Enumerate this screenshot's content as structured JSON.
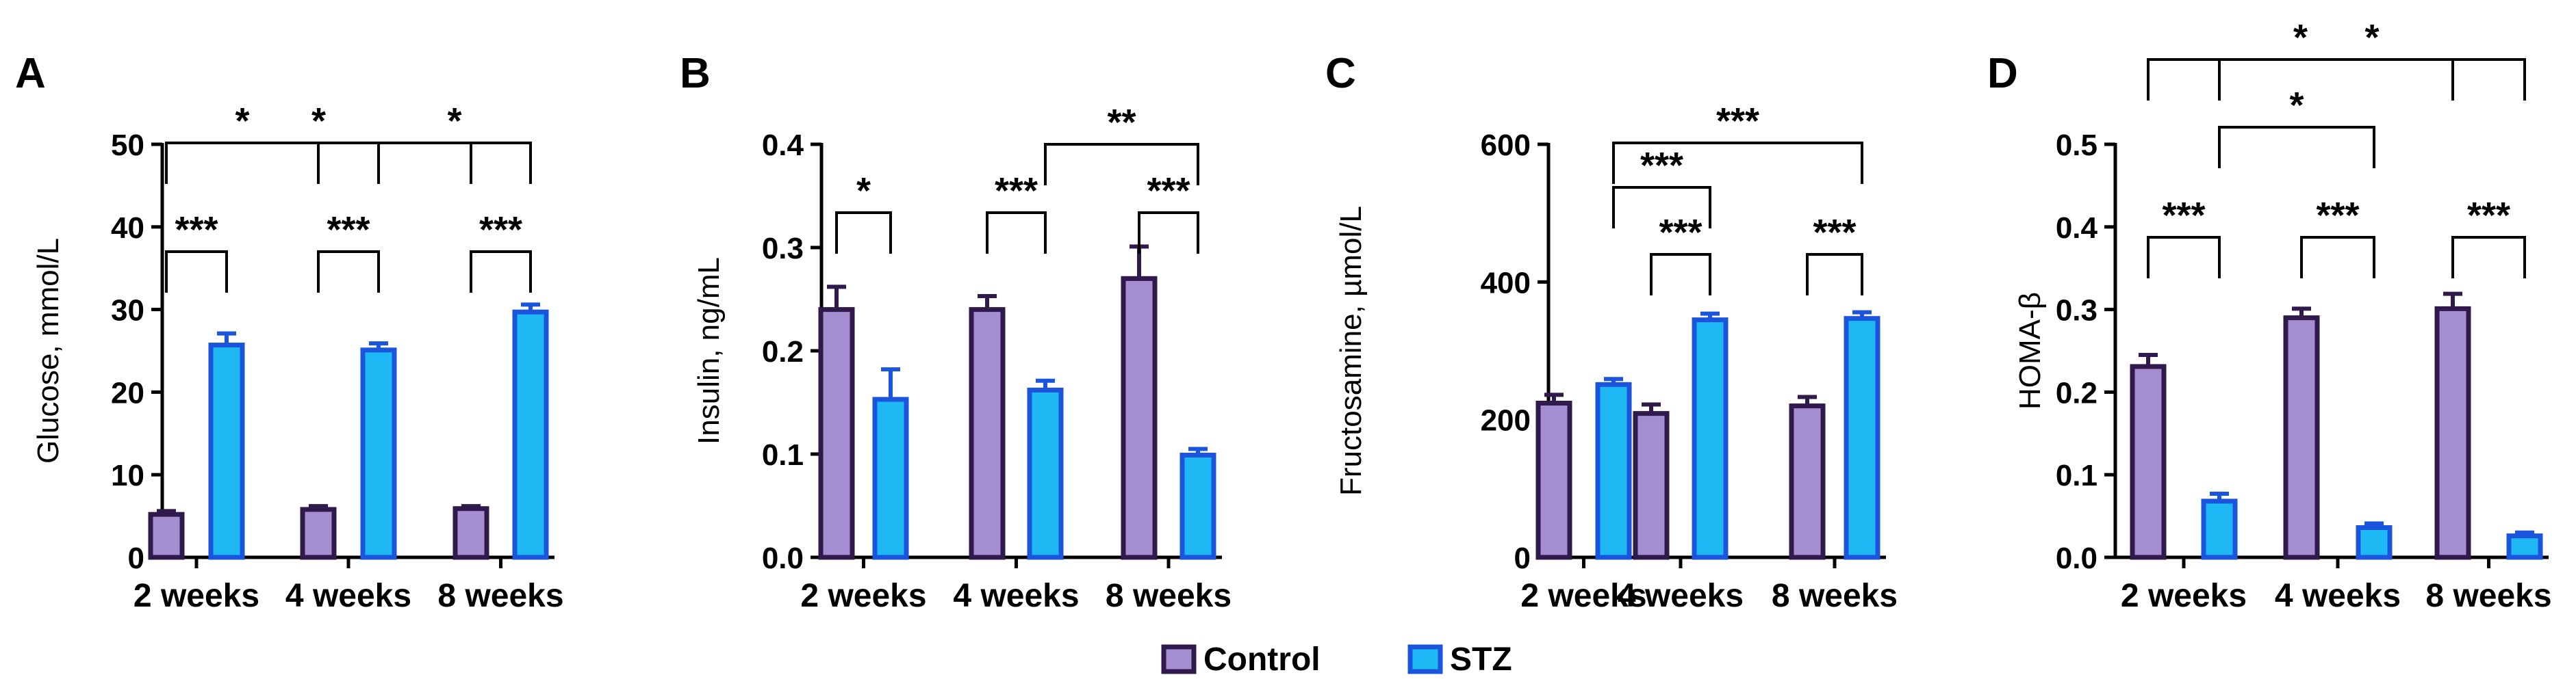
{
  "colors": {
    "control_fill": "#A48DD0",
    "control_edge": "#2F1A4B",
    "stz_fill": "#1EB8F5",
    "stz_edge": "#1C55DD",
    "line": "#000000"
  },
  "legend": {
    "placement": "bottom-center",
    "items": [
      {
        "label": "Control",
        "series": 0
      },
      {
        "label": "STZ",
        "series": 1
      }
    ]
  },
  "chart_data": [
    {
      "panel": "A",
      "type": "bar",
      "ylabel": "Glucose, mmol/L",
      "categories": [
        "2 weeks",
        "4 weeks",
        "8 weeks"
      ],
      "ylim": [
        0,
        50
      ],
      "yticks": [
        0,
        10,
        20,
        30,
        40,
        50
      ],
      "tick_labels": [
        "0",
        "10",
        "20",
        "30",
        "40",
        "50"
      ],
      "series": [
        {
          "name": "Control",
          "values": [
            5.2,
            5.8,
            5.9
          ],
          "errors": [
            0.4,
            0.4,
            0.3
          ]
        },
        {
          "name": "STZ",
          "values": [
            25.7,
            25.1,
            29.7
          ],
          "errors": [
            1.4,
            0.8,
            0.9
          ]
        }
      ],
      "comparisons": [
        {
          "from": [
            0,
            0
          ],
          "to": [
            0,
            1
          ],
          "label": "***"
        },
        {
          "from": [
            1,
            0
          ],
          "to": [
            1,
            1
          ],
          "label": "***"
        },
        {
          "from": [
            2,
            0
          ],
          "to": [
            2,
            1
          ],
          "label": "***"
        },
        {
          "from": [
            0,
            0
          ],
          "to": [
            1,
            0
          ],
          "label": "*"
        },
        {
          "from": [
            1,
            1
          ],
          "to": [
            2,
            1
          ],
          "label": "*"
        },
        {
          "from": [
            0,
            0
          ],
          "to": [
            2,
            0
          ],
          "label": "*"
        }
      ]
    },
    {
      "panel": "B",
      "type": "bar",
      "ylabel": "Insulin, ng/mL",
      "categories": [
        "2 weeks",
        "4 weeks",
        "8 weeks"
      ],
      "ylim": [
        0,
        0.4
      ],
      "yticks": [
        0,
        0.1,
        0.2,
        0.3,
        0.4
      ],
      "tick_labels": [
        "0.0",
        "0.1",
        "0.2",
        "0.3",
        "0.4"
      ],
      "series": [
        {
          "name": "Control",
          "values": [
            0.24,
            0.24,
            0.27
          ],
          "errors": [
            0.022,
            0.013,
            0.031
          ]
        },
        {
          "name": "STZ",
          "values": [
            0.153,
            0.162,
            0.099
          ],
          "errors": [
            0.029,
            0.009,
            0.006
          ]
        }
      ],
      "comparisons": [
        {
          "from": [
            0,
            0
          ],
          "to": [
            0,
            1
          ],
          "label": "*"
        },
        {
          "from": [
            1,
            0
          ],
          "to": [
            1,
            1
          ],
          "label": "***"
        },
        {
          "from": [
            2,
            0
          ],
          "to": [
            2,
            1
          ],
          "label": "***"
        },
        {
          "from": [
            1,
            1
          ],
          "to": [
            2,
            1
          ],
          "label": "**"
        }
      ]
    },
    {
      "panel": "C",
      "type": "bar",
      "ylabel": "Fructosamine, µmol/L",
      "categories": [
        "2 weeks",
        "4 weeks",
        "8 weeks"
      ],
      "ylim": [
        0,
        600
      ],
      "yticks": [
        0,
        200,
        400,
        600
      ],
      "tick_labels": [
        "0",
        "200",
        "400",
        "600"
      ],
      "series": [
        {
          "name": "Control",
          "values": [
            224,
            209,
            220
          ],
          "errors": [
            12,
            13,
            13
          ]
        },
        {
          "name": "STZ",
          "values": [
            251,
            345,
            347
          ],
          "errors": [
            8,
            9,
            9
          ]
        }
      ],
      "comparisons": [
        {
          "from": [
            1,
            0
          ],
          "to": [
            1,
            1
          ],
          "label": "***"
        },
        {
          "from": [
            2,
            0
          ],
          "to": [
            2,
            1
          ],
          "label": "***"
        },
        {
          "from": [
            0,
            1
          ],
          "to": [
            1,
            1
          ],
          "label": "***"
        },
        {
          "from": [
            0,
            1
          ],
          "to": [
            2,
            1
          ],
          "label": "***"
        }
      ]
    },
    {
      "panel": "D",
      "type": "bar",
      "ylabel": "HOMA-β",
      "categories": [
        "2 weeks",
        "4 weeks",
        "8 weeks"
      ],
      "ylim": [
        0,
        0.5
      ],
      "yticks": [
        0,
        0.1,
        0.2,
        0.3,
        0.4,
        0.5
      ],
      "tick_labels": [
        "0.0",
        "0.1",
        "0.2",
        "0.3",
        "0.4",
        "0.5"
      ],
      "series": [
        {
          "name": "Control",
          "values": [
            0.231,
            0.29,
            0.301
          ],
          "errors": [
            0.014,
            0.011,
            0.018
          ]
        },
        {
          "name": "STZ",
          "values": [
            0.068,
            0.036,
            0.026
          ],
          "errors": [
            0.009,
            0.005,
            0.004
          ]
        }
      ],
      "comparisons": [
        {
          "from": [
            0,
            0
          ],
          "to": [
            0,
            1
          ],
          "label": "***"
        },
        {
          "from": [
            1,
            0
          ],
          "to": [
            1,
            1
          ],
          "label": "***"
        },
        {
          "from": [
            2,
            0
          ],
          "to": [
            2,
            1
          ],
          "label": "***"
        },
        {
          "from": [
            0,
            1
          ],
          "to": [
            1,
            1
          ],
          "label": "*"
        },
        {
          "from": [
            0,
            0
          ],
          "to": [
            2,
            0
          ],
          "label": "*"
        },
        {
          "from": [
            0,
            1
          ],
          "to": [
            2,
            1
          ],
          "label": "*"
        }
      ]
    }
  ]
}
